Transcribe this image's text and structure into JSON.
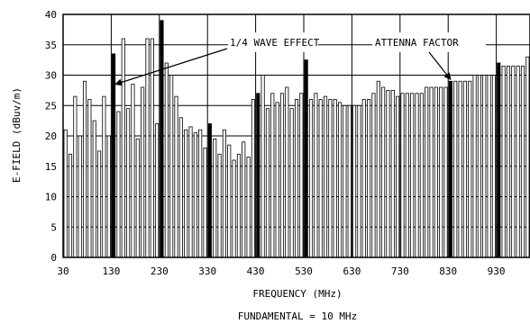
{
  "chart_data": {
    "type": "bar",
    "title": "",
    "xlabel": "FREQUENCY (MHz)",
    "ylabel": "E-FIELD (dBuv/m)",
    "subtitle": "FUNDAMENTAL = 10 MHz",
    "xlim": [
      30,
      1000
    ],
    "ylim": [
      0,
      40
    ],
    "x_ticks": [
      30,
      130,
      230,
      330,
      430,
      530,
      630,
      730,
      830,
      930
    ],
    "y_ticks": [
      0,
      5,
      10,
      15,
      20,
      25,
      30,
      35,
      40
    ],
    "grid": true,
    "bar_spacing_mhz": 10,
    "x": [
      30,
      40,
      50,
      60,
      70,
      80,
      90,
      100,
      110,
      120,
      130,
      140,
      150,
      160,
      170,
      180,
      190,
      200,
      210,
      220,
      230,
      240,
      250,
      260,
      270,
      280,
      290,
      300,
      310,
      320,
      330,
      340,
      350,
      360,
      370,
      380,
      390,
      400,
      410,
      420,
      430,
      440,
      450,
      460,
      470,
      480,
      490,
      500,
      510,
      520,
      530,
      540,
      550,
      560,
      570,
      580,
      590,
      600,
      610,
      620,
      630,
      640,
      650,
      660,
      670,
      680,
      690,
      700,
      710,
      720,
      730,
      740,
      750,
      760,
      770,
      780,
      790,
      800,
      810,
      820,
      830,
      840,
      850,
      860,
      870,
      880,
      890,
      900,
      910,
      920,
      930,
      940,
      950,
      960,
      970,
      980,
      990
    ],
    "values": [
      21,
      17,
      26.5,
      20,
      29,
      26,
      22.5,
      17.5,
      26.5,
      20,
      33.5,
      24,
      36,
      24.5,
      28.5,
      19.5,
      28,
      36,
      36,
      22,
      39,
      32,
      30,
      26.5,
      23,
      21,
      21.5,
      20.5,
      21,
      18,
      22,
      19.5,
      17,
      21,
      18.5,
      16,
      17,
      19,
      16.5,
      26,
      27,
      30,
      24.5,
      27,
      25.5,
      27,
      28,
      24.5,
      26,
      27,
      32.5,
      26,
      27,
      26,
      26.5,
      26,
      26,
      25.5,
      25,
      25,
      25,
      25,
      26,
      26,
      27,
      29,
      28,
      27.5,
      27.5,
      26.5,
      27,
      27,
      27,
      27,
      27,
      28,
      28,
      28,
      28,
      28,
      29,
      29,
      29,
      29,
      29,
      30,
      30,
      30,
      30,
      30,
      32,
      31.5,
      31.5,
      31.5,
      31.5,
      31.5,
      33
    ],
    "highlighted_x": [
      130,
      230,
      330,
      430,
      530,
      830,
      930
    ],
    "annotations": [
      {
        "text": "1/4 WAVE EFFECT",
        "target_x": 130,
        "target_y": 28.5
      },
      {
        "text": "ATTENNA FACTOR",
        "target_x": 830,
        "target_y": 29
      }
    ]
  },
  "colors": {
    "bar_stroke": "#000000",
    "bar_fill": "#ffffff",
    "highlight_fill": "#000000",
    "grid": "#000000",
    "background": "#ffffff"
  }
}
